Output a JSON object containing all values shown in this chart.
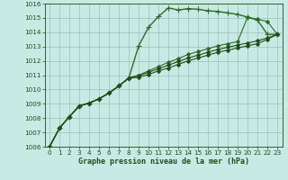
{
  "xlabel": "Graphe pression niveau de la mer (hPa)",
  "ylim": [
    1006,
    1016
  ],
  "xlim": [
    -0.5,
    23.5
  ],
  "yticks": [
    1006,
    1007,
    1008,
    1009,
    1010,
    1011,
    1012,
    1013,
    1014,
    1015,
    1016
  ],
  "xticks": [
    0,
    1,
    2,
    3,
    4,
    5,
    6,
    7,
    8,
    9,
    10,
    11,
    12,
    13,
    14,
    15,
    16,
    17,
    18,
    19,
    20,
    21,
    22,
    23
  ],
  "background_color": "#c8eae4",
  "grid_color": "#9bbfba",
  "line_color_dark": "#1e4d1a",
  "line_color_mid": "#2d6b28",
  "curves": [
    {
      "y": [
        1006.0,
        1007.3,
        1008.1,
        1008.85,
        1009.05,
        1009.35,
        1009.75,
        1010.25,
        1010.8,
        1013.05,
        1014.35,
        1015.1,
        1015.7,
        1015.55,
        1015.65,
        1015.6,
        1015.5,
        1015.45,
        1015.35,
        1015.25,
        1015.05,
        1014.85,
        1013.85,
        1013.85
      ],
      "marker": "+",
      "ms": 5,
      "lw": 1.0,
      "color": "#2d6b28"
    },
    {
      "y": [
        1006.0,
        1007.3,
        1008.1,
        1008.85,
        1009.05,
        1009.35,
        1009.75,
        1010.25,
        1010.8,
        1011.0,
        1011.3,
        1011.6,
        1011.9,
        1012.15,
        1012.45,
        1012.65,
        1012.85,
        1013.05,
        1013.2,
        1013.35,
        1015.05,
        1014.9,
        1014.75,
        1013.85
      ],
      "marker": "D",
      "ms": 2,
      "lw": 0.8,
      "color": "#2d6b28"
    },
    {
      "y": [
        1006.0,
        1007.3,
        1008.1,
        1008.85,
        1009.05,
        1009.35,
        1009.75,
        1010.25,
        1010.8,
        1010.95,
        1011.2,
        1011.45,
        1011.7,
        1011.95,
        1012.2,
        1012.4,
        1012.6,
        1012.8,
        1012.95,
        1013.1,
        1013.25,
        1013.4,
        1013.6,
        1013.85
      ],
      "marker": "D",
      "ms": 2,
      "lw": 0.8,
      "color": "#1e4d1a"
    },
    {
      "y": [
        1006.0,
        1007.3,
        1008.1,
        1008.85,
        1009.05,
        1009.35,
        1009.75,
        1010.25,
        1010.8,
        1010.85,
        1011.05,
        1011.3,
        1011.5,
        1011.75,
        1012.0,
        1012.2,
        1012.4,
        1012.6,
        1012.75,
        1012.9,
        1013.05,
        1013.2,
        1013.5,
        1013.85
      ],
      "marker": "D",
      "ms": 2,
      "lw": 0.8,
      "color": "#1e4d1a"
    }
  ]
}
